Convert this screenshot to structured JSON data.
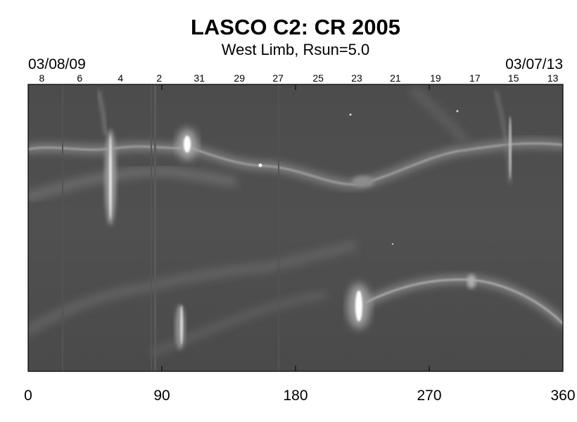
{
  "chart_data": {
    "type": "heatmap",
    "title": "LASCO C2: CR 2005",
    "subtitle": "West Limb, Rsun=5.0",
    "date_start": "03/08/09",
    "date_end": "03/07/13",
    "xlim": [
      0,
      360
    ],
    "x_ticks": [
      "0",
      "90",
      "180",
      "270",
      "360"
    ],
    "x_tick_values": [
      0,
      90,
      180,
      270,
      360
    ],
    "top_day_labels": [
      "8",
      "6",
      "4",
      "2",
      "31",
      "29",
      "27",
      "25",
      "23",
      "21",
      "19",
      "17",
      "15",
      "13"
    ],
    "top_day_values": [
      13,
      38.5,
      66,
      92,
      119,
      146,
      172,
      199,
      225,
      251,
      278,
      304.5,
      330.5,
      357
    ],
    "colormap": "grayscale",
    "background_color": "#505050",
    "frame_color": "#000000"
  }
}
